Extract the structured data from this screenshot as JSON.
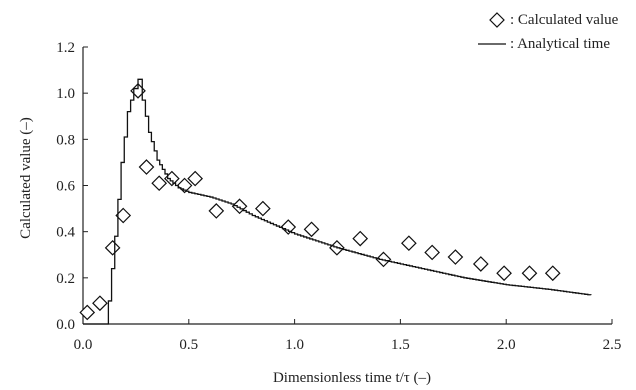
{
  "chart_data": {
    "type": "scatter",
    "title": "",
    "xlabel": "Dimensionless time  t/τ (–)",
    "ylabel": "Calculated value  (–)",
    "xlim": [
      0,
      2.5
    ],
    "ylim": [
      0,
      1.2
    ],
    "x_ticks": [
      0.0,
      0.5,
      1.0,
      1.5,
      2.0,
      2.5
    ],
    "x_tick_labels": [
      "0.0",
      "0.5",
      "1.0",
      "1.5",
      "2.0",
      "2.5"
    ],
    "y_ticks": [
      0.0,
      0.2,
      0.4,
      0.6,
      0.8,
      1.0,
      1.2
    ],
    "y_tick_labels": [
      "0.0",
      "0.2",
      "0.4",
      "0.6",
      "0.8",
      "1.0",
      "1.2"
    ],
    "grid": false,
    "legend_position": "top-right",
    "series": [
      {
        "name": ": Calculated value",
        "kind": "scatter",
        "marker": "diamond",
        "x": [
          0.02,
          0.08,
          0.14,
          0.19,
          0.26,
          0.3,
          0.36,
          0.42,
          0.48,
          0.53,
          0.63,
          0.74,
          0.85,
          0.97,
          1.08,
          1.2,
          1.31,
          1.42,
          1.54,
          1.65,
          1.76,
          1.88,
          1.99,
          2.11,
          2.22
        ],
        "y": [
          0.05,
          0.09,
          0.33,
          0.47,
          1.01,
          0.68,
          0.61,
          0.63,
          0.6,
          0.63,
          0.49,
          0.51,
          0.5,
          0.42,
          0.41,
          0.33,
          0.37,
          0.28,
          0.35,
          0.31,
          0.29,
          0.26,
          0.22,
          0.22,
          0.22
        ]
      },
      {
        "name": ": Analytical time",
        "kind": "line",
        "x": [
          0.0,
          0.1,
          0.12,
          0.15,
          0.18,
          0.21,
          0.24,
          0.26,
          0.28,
          0.31,
          0.35,
          0.4,
          0.45,
          0.5,
          0.6,
          0.7,
          0.8,
          0.9,
          1.0,
          1.2,
          1.4,
          1.6,
          1.8,
          2.0,
          2.2,
          2.4
        ],
        "y": [
          0.0,
          0.0,
          0.1,
          0.38,
          0.7,
          0.92,
          1.02,
          1.06,
          0.97,
          0.83,
          0.71,
          0.63,
          0.59,
          0.57,
          0.55,
          0.52,
          0.47,
          0.43,
          0.39,
          0.33,
          0.28,
          0.24,
          0.2,
          0.17,
          0.15,
          0.125
        ]
      }
    ]
  }
}
